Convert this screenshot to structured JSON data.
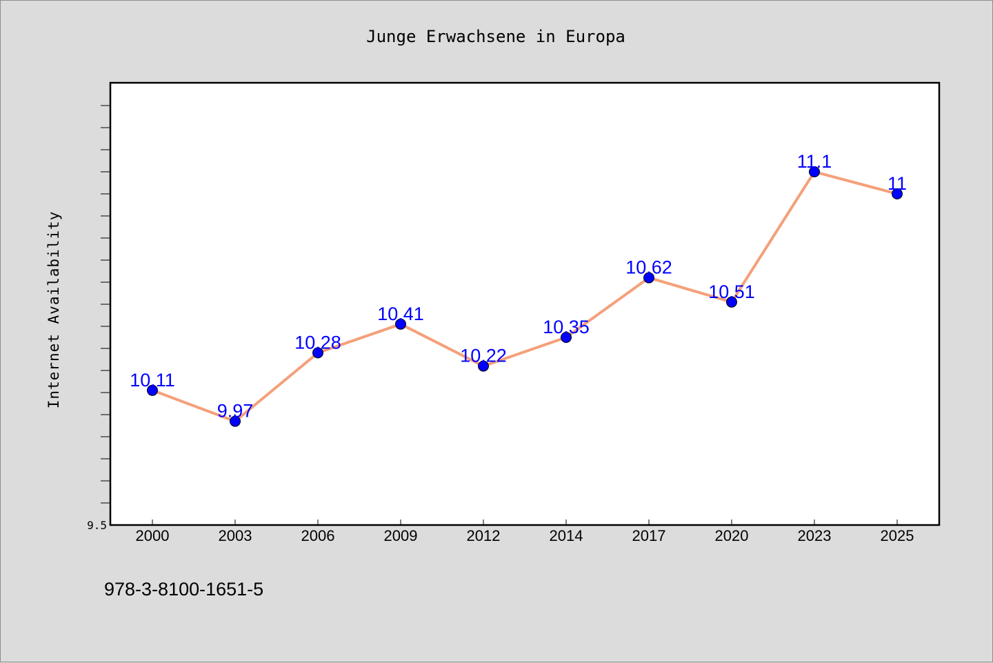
{
  "footnote": "978-3-8100-1651-5",
  "chart_data": {
    "type": "line",
    "title": "Junge Erwachsene in Europa",
    "xlabel": "",
    "ylabel": "Internet Availability",
    "categories": [
      "2000",
      "2003",
      "2006",
      "2009",
      "2012",
      "2014",
      "2017",
      "2020",
      "2023",
      "2025"
    ],
    "series": [
      {
        "values": [
          10.11,
          9.97,
          10.28,
          10.41,
          10.22,
          10.35,
          10.62,
          10.51,
          11.1,
          11
        ],
        "data_labels": [
          "10.11",
          "9.97",
          "10.28",
          "10.41",
          "10.22",
          "10.35",
          "10.62",
          "10.51",
          "11.1",
          "11"
        ],
        "line_color": "#f4a07a",
        "marker_color": "#0000ff"
      }
    ],
    "ylim": [
      9.5,
      11.5
    ],
    "ytick_labels": [
      "9.5"
    ],
    "grid": false,
    "legend": "none"
  }
}
